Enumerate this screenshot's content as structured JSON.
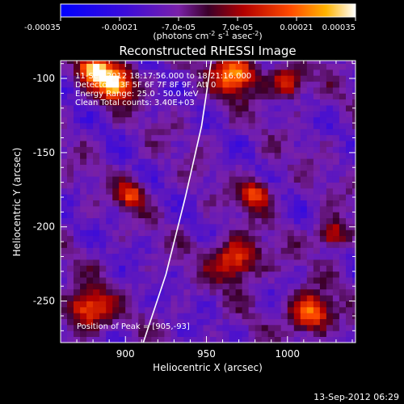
{
  "colorbar": {
    "ticks": [
      "-0.00035",
      "-0.00021",
      "-7.0e-05",
      "7.0e-05",
      "0.00021",
      "0.00035"
    ],
    "min": -0.00035,
    "max": 0.00035
  },
  "chart_data": {
    "type": "heatmap",
    "title": "Reconstructed RHESSI Image",
    "xlabel": "Heliocentric X (arcsec)",
    "ylabel": "Heliocentric Y (arcsec)",
    "xlim": [
      860,
      1042
    ],
    "ylim": [
      -278,
      -88
    ],
    "xticks": [
      "900",
      "950",
      "1000"
    ],
    "yticks": [
      "-100",
      "-150",
      "-200",
      "-250"
    ],
    "info_lines": [
      "11-Sep-2012 18:17:56.000 to 18:21:16.000",
      "Detectors: 3F 5F 6F 7F 8F 9F, Att 0",
      "Energy Range: 25.0 - 50.0 keV",
      "Clean     Total counts: 3.40E+03"
    ],
    "peak_label": "Position of Peak = [905,-93]",
    "peak": [
      905,
      -93
    ],
    "limb_curve_xy": [
      [
        911,
        -278
      ],
      [
        925,
        -232
      ],
      [
        937,
        -180
      ],
      [
        947,
        -132
      ],
      [
        953,
        -88
      ]
    ],
    "bright_regions": [
      {
        "x": 893,
        "y": -103,
        "r": 12,
        "level": 0.00035
      },
      {
        "x": 880,
        "y": -93,
        "r": 9,
        "level": 0.00028
      },
      {
        "x": 968,
        "y": -97,
        "r": 14,
        "level": 0.00026
      },
      {
        "x": 1000,
        "y": -103,
        "r": 10,
        "level": 0.0002
      },
      {
        "x": 1014,
        "y": -258,
        "r": 13,
        "level": 0.00026
      },
      {
        "x": 968,
        "y": -222,
        "r": 15,
        "level": 0.00019
      },
      {
        "x": 877,
        "y": -255,
        "r": 14,
        "level": 0.00022
      },
      {
        "x": 903,
        "y": -178,
        "r": 9,
        "level": 0.00016
      },
      {
        "x": 980,
        "y": -178,
        "r": 10,
        "level": 0.00018
      },
      {
        "x": 1028,
        "y": -205,
        "r": 9,
        "level": 0.00018
      }
    ]
  },
  "footer": {
    "date": "13-Sep-2012 06:29"
  }
}
